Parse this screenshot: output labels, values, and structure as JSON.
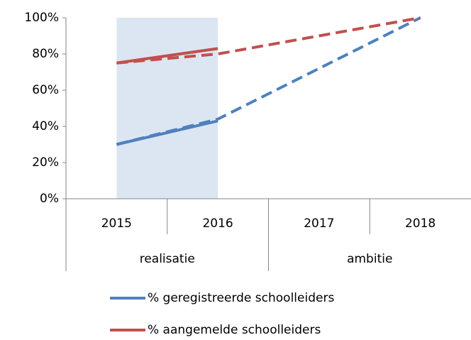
{
  "chart_data": {
    "type": "line",
    "categories": [
      "2015",
      "2016",
      "2017",
      "2018"
    ],
    "groups": [
      {
        "label": "realisatie",
        "size": 2,
        "shaded": true
      },
      {
        "label": "ambitie",
        "size": 2,
        "shaded": false
      }
    ],
    "series": [
      {
        "name": "% geregistreerde schoolleiders",
        "color": "#4f81bd",
        "values": [
          30,
          43,
          null,
          null
        ],
        "ambition": [
          30,
          44,
          72,
          100
        ]
      },
      {
        "name": "% aangemelde schoolleiders",
        "color": "#c0504d",
        "values": [
          75,
          83,
          null,
          null
        ],
        "ambition": [
          75,
          80,
          90,
          100
        ]
      }
    ],
    "ylim": [
      0,
      100
    ],
    "yticks": [
      {
        "value": 0,
        "label": "0%"
      },
      {
        "value": 20,
        "label": "20%"
      },
      {
        "value": 40,
        "label": "40%"
      },
      {
        "value": 60,
        "label": "60%"
      },
      {
        "value": 80,
        "label": "80%"
      },
      {
        "value": 100,
        "label": "100%"
      }
    ],
    "shade_color": "#dce6f2",
    "grid": false,
    "legend": "bottom"
  }
}
